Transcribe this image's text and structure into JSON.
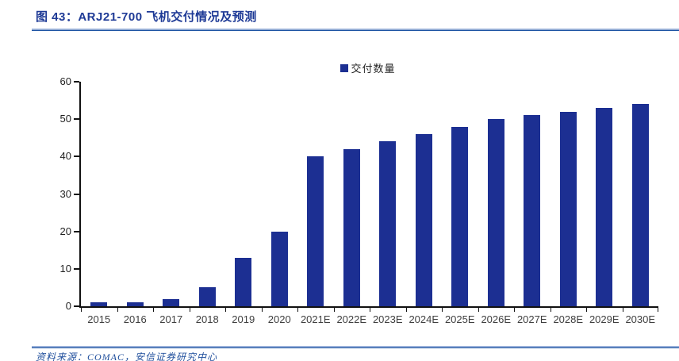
{
  "header": {
    "title": "图 43：ARJ21-700 飞机交付情况及预测"
  },
  "chart_data": {
    "type": "bar",
    "title": "ARJ21-700 飞机交付情况及预测",
    "legend": "交付数量",
    "categories": [
      "2015",
      "2016",
      "2017",
      "2018",
      "2019",
      "2020",
      "2021E",
      "2022E",
      "2023E",
      "2024E",
      "2025E",
      "2026E",
      "2027E",
      "2028E",
      "2029E",
      "2030E"
    ],
    "values": [
      1,
      1,
      2,
      5,
      13,
      20,
      40,
      42,
      44,
      46,
      48,
      50,
      51,
      52,
      53,
      54
    ],
    "xlabel": "",
    "ylabel": "",
    "ylim": [
      0,
      60
    ],
    "yticks": [
      0,
      10,
      20,
      30,
      40,
      50,
      60
    ],
    "grid": false,
    "legend_position": "top-center",
    "bar_color": "#1C2F92"
  },
  "footer": {
    "source": "资料来源：COMAC，安信证券研究中心"
  },
  "colors": {
    "accent_navy": "#1E3A96",
    "rule_blue": "#1F55A4",
    "axis_black": "#111111",
    "tick_label_gray": "#3F3F3F"
  }
}
